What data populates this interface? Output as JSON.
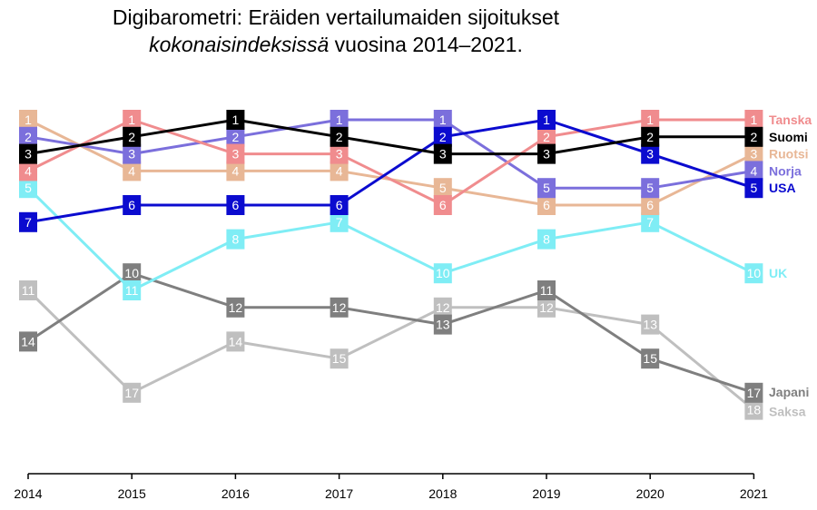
{
  "title": {
    "line1": "Digibarometri: Eräiden vertailumaiden sijoitukset",
    "line2_italic": "kokonaisindeksissä",
    "line2_rest": " vuosina 2014–2021."
  },
  "chart_data": {
    "type": "line",
    "x": [
      "2014",
      "2015",
      "2016",
      "2017",
      "2018",
      "2019",
      "2020",
      "2021"
    ],
    "ylim": [
      1,
      18
    ],
    "y_inverted": true,
    "grid": false,
    "legend": "right end labels",
    "series": [
      {
        "name": "Saksa",
        "color": "#bfbfbf",
        "values": [
          11,
          17,
          14,
          15,
          12,
          12,
          13,
          18
        ]
      },
      {
        "name": "Japani",
        "color": "#7f7f7f",
        "values": [
          14,
          10,
          12,
          12,
          13,
          11,
          15,
          17
        ]
      },
      {
        "name": "UK",
        "color": "#7fedf5",
        "values": [
          5,
          11,
          8,
          7,
          10,
          8,
          7,
          10
        ]
      },
      {
        "name": "Ruotsi",
        "color": "#e8b796",
        "values": [
          1,
          4,
          4,
          4,
          5,
          6,
          6,
          3
        ]
      },
      {
        "name": "Norja",
        "color": "#7b6fdc",
        "values": [
          2,
          3,
          2,
          1,
          1,
          5,
          5,
          4
        ]
      },
      {
        "name": "Tanska",
        "color": "#f08c8e",
        "values": [
          4,
          1,
          3,
          3,
          6,
          2,
          1,
          1
        ]
      },
      {
        "name": "USA",
        "color": "#0b0bcf",
        "values": [
          7,
          6,
          6,
          6,
          2,
          1,
          3,
          5
        ]
      },
      {
        "name": "Suomi",
        "color": "#000000",
        "values": [
          3,
          2,
          1,
          2,
          3,
          3,
          2,
          2
        ]
      }
    ]
  }
}
